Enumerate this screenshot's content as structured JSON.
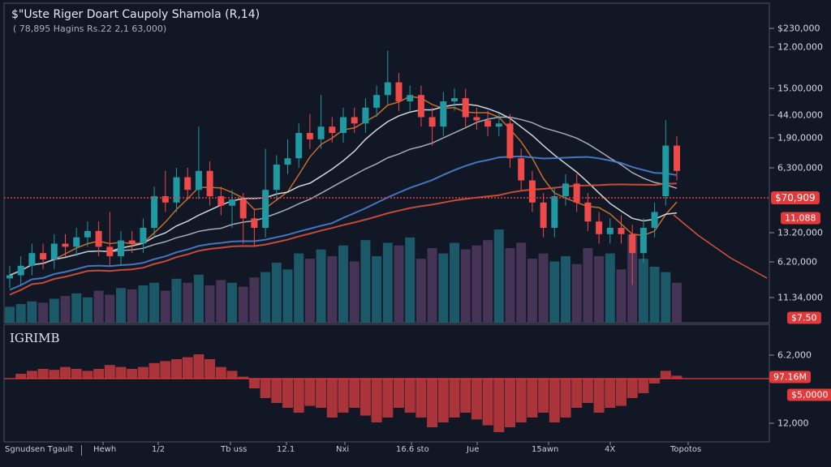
{
  "header": {
    "title": "$\"Uste Riger Doart Caupoly Shamola (R,14)",
    "subtitle": "( 78,895 Hagins Rs.22 2,1 63,000)"
  },
  "indicator_label": "IGRIMB",
  "colors": {
    "background": "#111724",
    "up": "#1f9aa3",
    "down": "#ef4a4a",
    "volume_up": "#1d6474",
    "volume_down": "#4f3a5e",
    "ma_fast": "#d9782e",
    "ma_mid": "#e8ebef",
    "ma_slow": "#b7bcc6",
    "ma_long": "#4a7fd0",
    "ma_trend": "#d9513b",
    "price_line": "#e23a3a",
    "histogram": "#c73a3e"
  },
  "right_axis": {
    "labels": [
      "$230,000",
      "12.00,000",
      "15.00,000",
      "44.00,000",
      "1,90,0000",
      "6,300,000",
      "13.20,000",
      "6.20,000",
      "11.34,000",
      "6.2,000",
      "12,000"
    ],
    "tags": [
      "$70,909",
      "11,088",
      "$7.50",
      "97.16M",
      "$5,0000"
    ]
  },
  "x_axis": {
    "left_label": "Sgnudsen Tgault",
    "labels": [
      "Hewh",
      "1/2",
      "Tb uss",
      "12.1",
      "Nxi",
      "16.6 sto",
      "Jue",
      "15awn",
      "4X",
      "Topotos"
    ]
  },
  "chart_data": {
    "type": "candlestick",
    "ylim": [
      0,
      100
    ],
    "price_line": 39.5,
    "open": [
      14,
      15,
      18,
      22,
      20,
      25,
      24,
      27,
      29,
      24,
      21,
      26,
      25,
      30,
      40,
      38,
      46,
      42,
      48,
      40,
      37,
      39,
      33,
      30,
      42,
      50,
      52,
      60,
      58,
      62,
      60,
      65,
      63,
      68,
      72,
      76,
      70,
      72,
      65,
      62,
      70,
      71,
      65,
      64,
      62,
      63,
      52,
      45,
      38,
      30,
      40,
      44,
      38,
      32,
      28,
      30,
      28,
      22,
      30,
      40,
      56
    ],
    "high": [
      18,
      21,
      25,
      25,
      28,
      28,
      30,
      32,
      32,
      35,
      29,
      29,
      33,
      43,
      48,
      49,
      49,
      62,
      51,
      43,
      42,
      41,
      36,
      55,
      53,
      58,
      63,
      66,
      72,
      65,
      68,
      68,
      71,
      75,
      86,
      79,
      75,
      75,
      68,
      73,
      74,
      74,
      68,
      67,
      66,
      66,
      55,
      48,
      41,
      43,
      47,
      47,
      41,
      35,
      33,
      34,
      31,
      33,
      38,
      64,
      59
    ],
    "low": [
      11,
      12,
      15,
      17,
      17,
      21,
      21,
      24,
      21,
      18,
      18,
      22,
      22,
      27,
      35,
      35,
      39,
      39,
      37,
      34,
      30,
      25,
      24,
      27,
      39,
      47,
      49,
      55,
      55,
      57,
      57,
      60,
      60,
      65,
      69,
      67,
      67,
      62,
      56,
      59,
      67,
      62,
      61,
      59,
      59,
      49,
      42,
      35,
      27,
      27,
      37,
      35,
      29,
      25,
      25,
      25,
      12,
      19,
      27,
      37,
      45
    ],
    "close": [
      15,
      18,
      22,
      20,
      25,
      24,
      27,
      29,
      24,
      21,
      26,
      25,
      30,
      40,
      38,
      46,
      42,
      48,
      40,
      37,
      39,
      33,
      30,
      42,
      50,
      52,
      60,
      58,
      62,
      60,
      65,
      63,
      68,
      72,
      76,
      70,
      72,
      65,
      62,
      70,
      71,
      65,
      64,
      62,
      63,
      52,
      45,
      38,
      30,
      40,
      44,
      38,
      32,
      28,
      30,
      28,
      22,
      30,
      35,
      56,
      48
    ],
    "volume": [
      12,
      14,
      16,
      15,
      18,
      20,
      22,
      19,
      24,
      21,
      26,
      25,
      28,
      30,
      24,
      33,
      30,
      36,
      28,
      32,
      30,
      27,
      34,
      38,
      45,
      40,
      52,
      48,
      55,
      50,
      58,
      46,
      62,
      50,
      60,
      58,
      64,
      48,
      56,
      52,
      60,
      55,
      58,
      62,
      70,
      56,
      60,
      48,
      52,
      46,
      50,
      44,
      56,
      50,
      52,
      40,
      66,
      48,
      42,
      38,
      30
    ],
    "oscillator": [
      0,
      5,
      8,
      10,
      9,
      12,
      10,
      8,
      10,
      14,
      12,
      10,
      12,
      16,
      18,
      20,
      22,
      25,
      20,
      12,
      8,
      2,
      -10,
      -20,
      -25,
      -30,
      -35,
      -28,
      -30,
      -40,
      -35,
      -30,
      -38,
      -45,
      -40,
      -30,
      -35,
      -40,
      -50,
      -45,
      -40,
      -35,
      -42,
      -48,
      -55,
      -50,
      -45,
      -40,
      -35,
      -45,
      -40,
      -30,
      -25,
      -35,
      -30,
      -28,
      -20,
      -15,
      -5,
      8,
      3
    ],
    "moving_averages": [
      5,
      10,
      20,
      30,
      45
    ]
  }
}
